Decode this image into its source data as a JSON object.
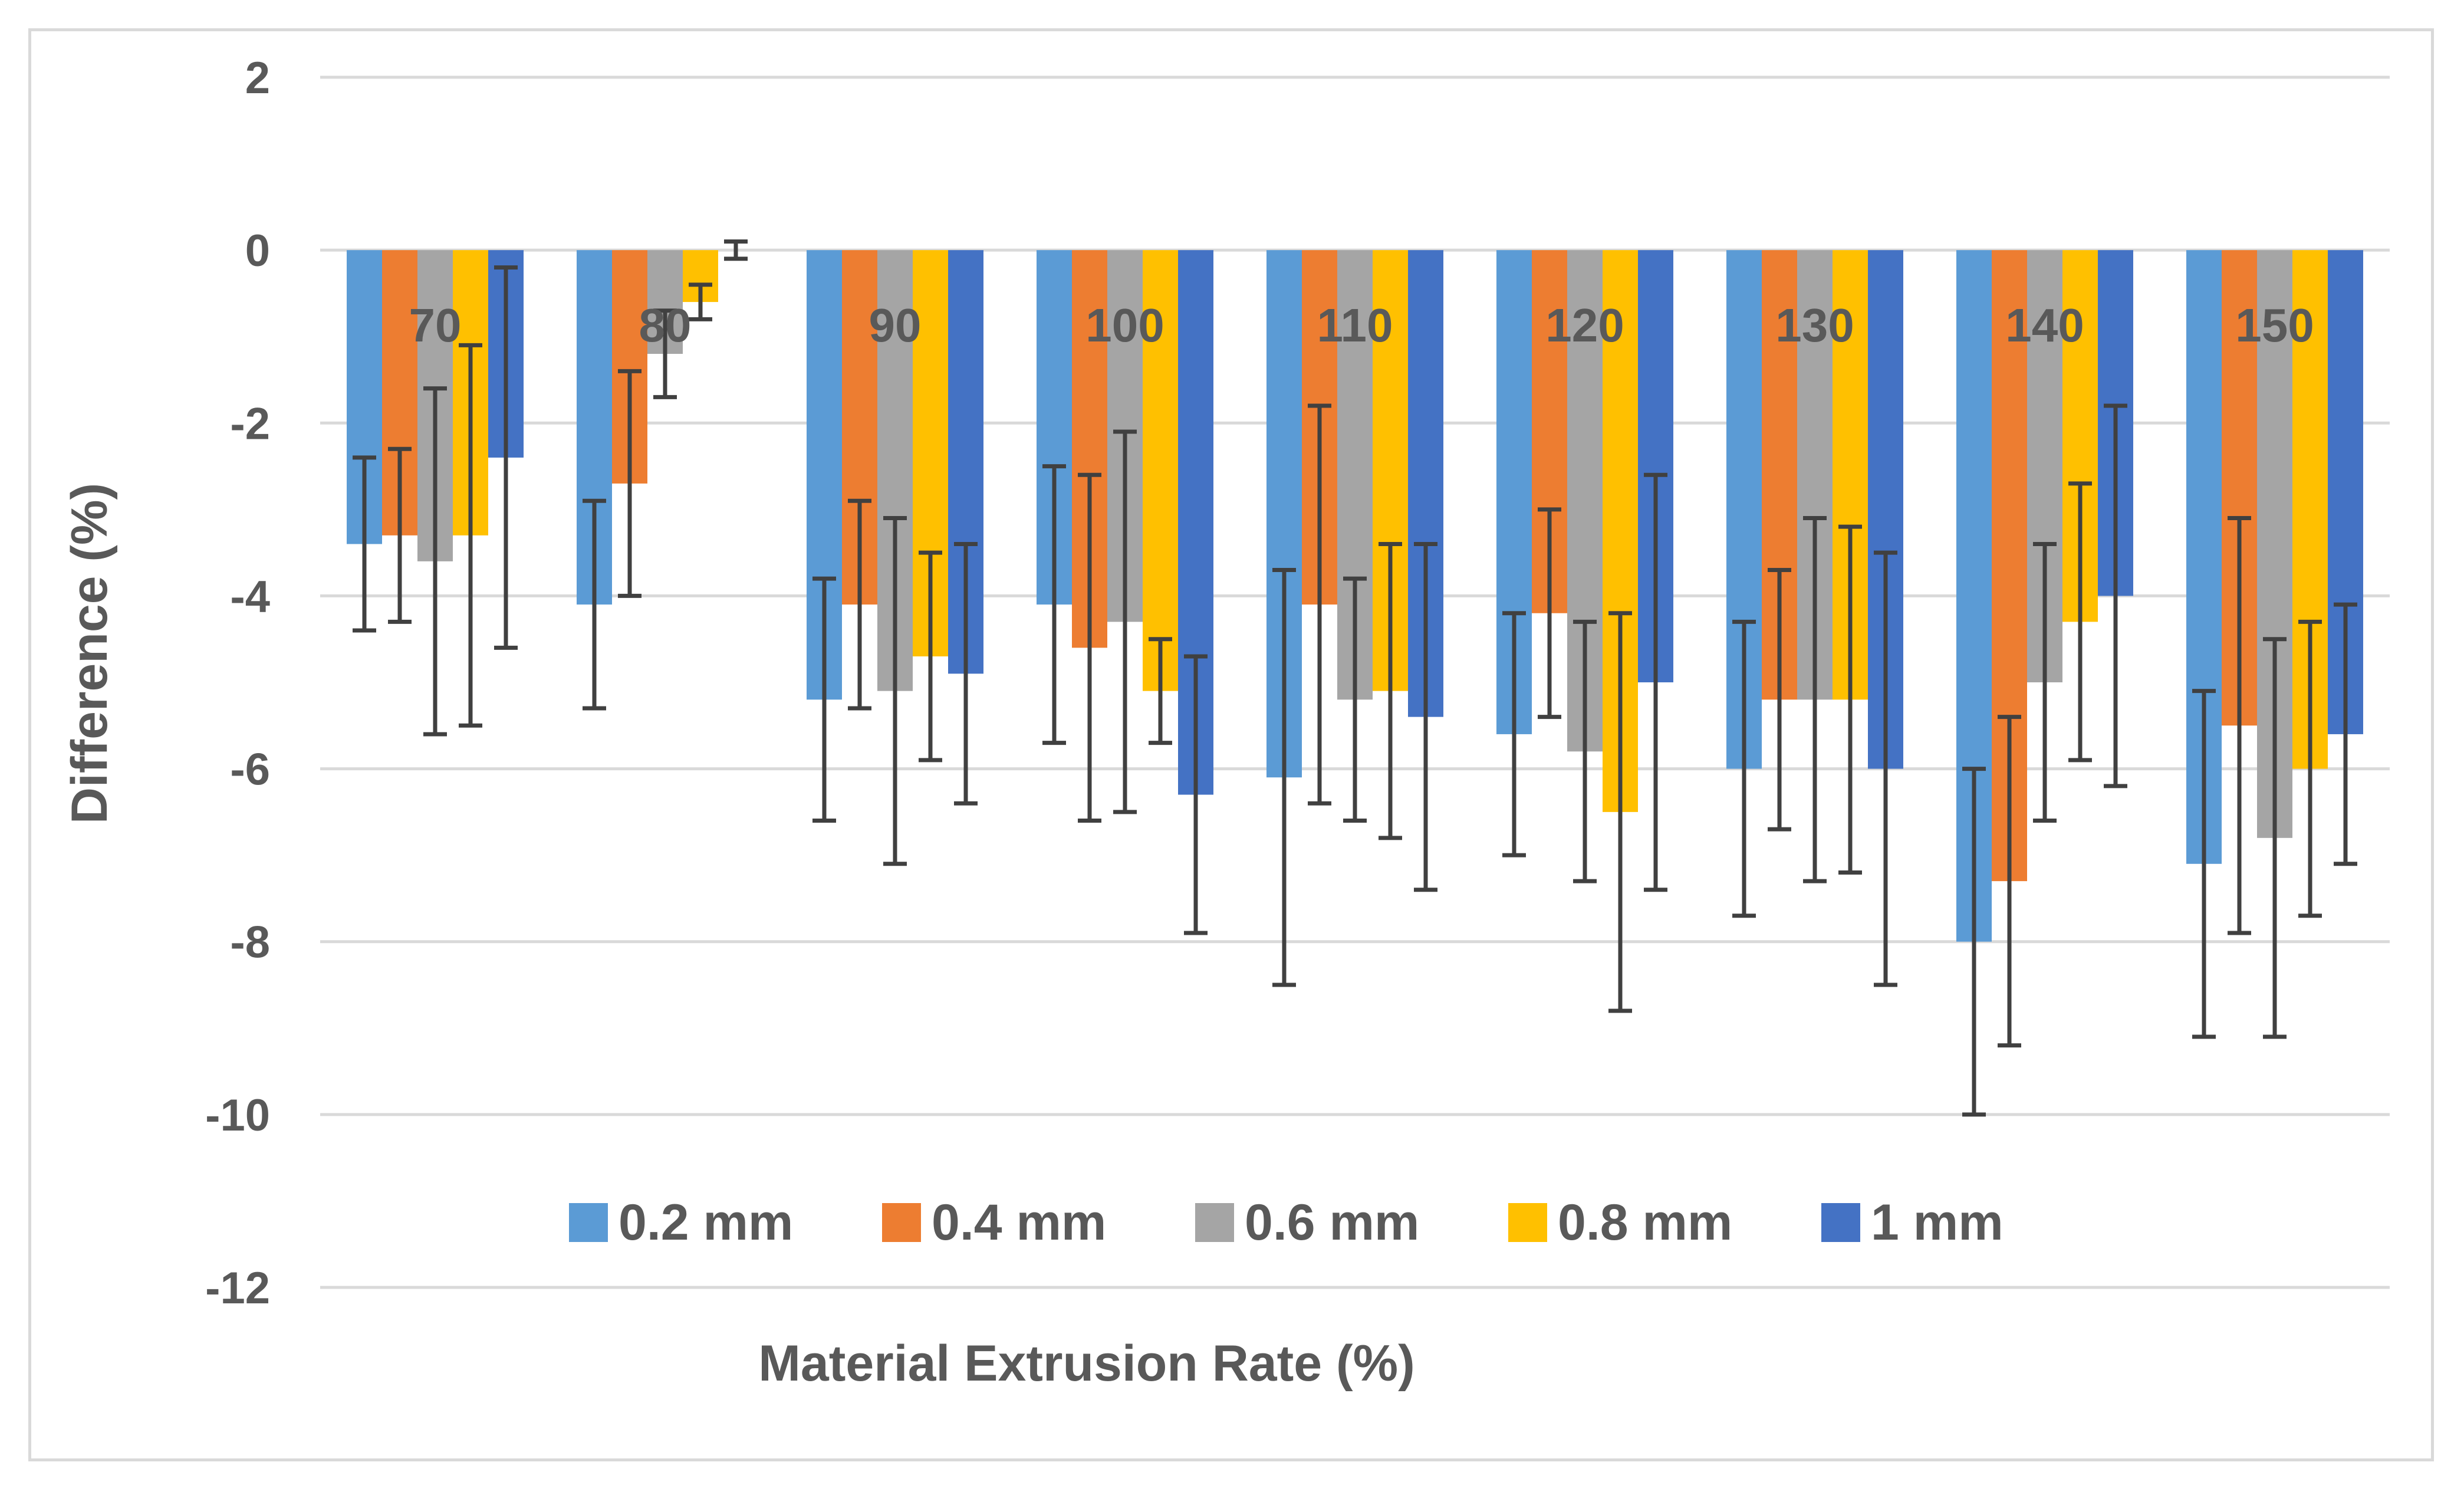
{
  "chart_data": {
    "type": "bar",
    "title": "",
    "xlabel": "Material Extrusion Rate (%)",
    "ylabel": "Difference (%)",
    "ylim": [
      -12,
      2
    ],
    "yticks": [
      2,
      0,
      -2,
      -4,
      -6,
      -8,
      -10,
      -12
    ],
    "grid": true,
    "legend_position": "inside-bottom",
    "categories": [
      "70",
      "80",
      "90",
      "100",
      "110",
      "120",
      "130",
      "140",
      "150"
    ],
    "series": [
      {
        "name": "0.2 mm",
        "color": "#5b9bd5",
        "values": [
          -3.4,
          -4.1,
          -5.2,
          -4.1,
          -6.1,
          -5.6,
          -6.0,
          -8.0,
          -7.1
        ],
        "errors": [
          1.0,
          1.2,
          1.4,
          1.6,
          2.4,
          1.4,
          1.7,
          2.0,
          2.0
        ]
      },
      {
        "name": "0.4 mm",
        "color": "#ed7d31",
        "values": [
          -3.3,
          -2.7,
          -4.1,
          -4.6,
          -4.1,
          -4.2,
          -5.2,
          -7.3,
          -5.5
        ],
        "errors": [
          1.0,
          1.3,
          1.2,
          2.0,
          2.3,
          1.2,
          1.5,
          1.9,
          2.4
        ]
      },
      {
        "name": "0.6 mm",
        "color": "#a5a5a5",
        "values": [
          -3.6,
          -1.2,
          -5.1,
          -4.3,
          -5.2,
          -5.8,
          -5.2,
          -5.0,
          -6.8
        ],
        "errors": [
          2.0,
          0.5,
          2.0,
          2.2,
          1.4,
          1.5,
          2.1,
          1.6,
          2.3
        ]
      },
      {
        "name": "0.8 mm",
        "color": "#ffc000",
        "values": [
          -3.3,
          -0.6,
          -4.7,
          -5.1,
          -5.1,
          -6.5,
          -5.2,
          -4.3,
          -6.0
        ],
        "errors": [
          2.2,
          0.2,
          1.2,
          0.6,
          1.7,
          2.3,
          2.0,
          1.6,
          1.7
        ]
      },
      {
        "name": "1 mm",
        "color": "#4472c4",
        "values": [
          -2.4,
          0.0,
          -4.9,
          -6.3,
          -5.4,
          -5.0,
          -6.0,
          -4.0,
          -5.6
        ],
        "errors": [
          2.2,
          0.1,
          1.5,
          1.6,
          2.0,
          2.4,
          2.5,
          2.2,
          1.5
        ]
      }
    ]
  }
}
